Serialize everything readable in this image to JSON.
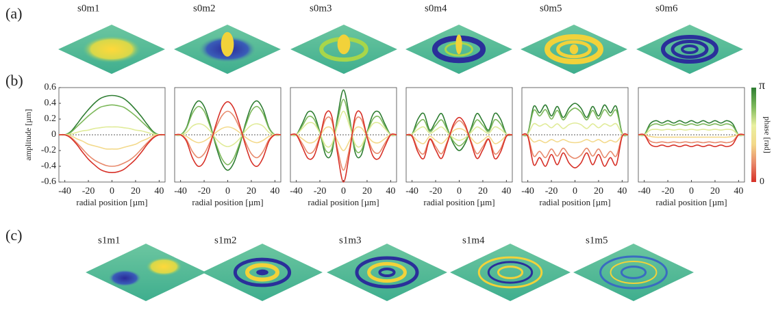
{
  "panel_labels": [
    "(a)",
    "(b)",
    "(c)"
  ],
  "a_titles": [
    "s0m1",
    "s0m2",
    "s0m3",
    "s0m4",
    "s0m5",
    "s0m6"
  ],
  "c_titles": [
    "s1m1",
    "s1m2",
    "s1m3",
    "s1m4",
    "s1m5"
  ],
  "colorbar": {
    "max_label": "π",
    "min_label": "0",
    "label": "phase [rad]",
    "colors": [
      "#2e7d32",
      "#7cb85a",
      "#e9f0a0",
      "#f3d98a",
      "#e8896b",
      "#d73027"
    ]
  },
  "chart_data": [
    {
      "type": "line",
      "ylabel": "amplitude [µm]",
      "xlabel": "radial position [µm]",
      "x": [
        -45,
        -40,
        -35,
        -30,
        -25,
        -20,
        -15,
        -10,
        -5,
        0,
        5,
        10,
        15,
        20,
        25,
        30,
        35,
        40,
        45
      ],
      "xlim": [
        -45,
        45
      ],
      "xticks": [
        -40,
        -20,
        0,
        20,
        40
      ],
      "ylim": [
        -0.6,
        0.6
      ],
      "yticks": [
        -0.6,
        -0.4,
        -0.2,
        0,
        0.2,
        0.4,
        0.6
      ],
      "series": [
        {
          "color": "#2e7d32",
          "values": [
            0,
            0,
            0.04,
            0.13,
            0.23,
            0.32,
            0.4,
            0.46,
            0.49,
            0.5,
            0.49,
            0.46,
            0.4,
            0.32,
            0.23,
            0.13,
            0.04,
            0,
            0
          ]
        },
        {
          "color": "#7cb85a",
          "values": [
            0,
            0,
            0.03,
            0.1,
            0.17,
            0.24,
            0.3,
            0.35,
            0.37,
            0.38,
            0.37,
            0.35,
            0.3,
            0.24,
            0.17,
            0.1,
            0.03,
            0,
            0
          ]
        },
        {
          "color": "#e0eb98",
          "values": [
            0,
            0,
            0.01,
            0.03,
            0.05,
            0.06,
            0.08,
            0.09,
            0.1,
            0.1,
            0.1,
            0.09,
            0.08,
            0.06,
            0.05,
            0.03,
            0.01,
            0,
            0
          ]
        },
        {
          "color": "#f3d98a",
          "values": [
            0,
            0,
            -0.01,
            -0.05,
            -0.08,
            -0.12,
            -0.14,
            -0.16,
            -0.18,
            -0.18,
            -0.18,
            -0.16,
            -0.14,
            -0.12,
            -0.08,
            -0.05,
            -0.01,
            0,
            0
          ]
        },
        {
          "color": "#e8896b",
          "values": [
            0,
            0,
            -0.03,
            -0.1,
            -0.18,
            -0.26,
            -0.32,
            -0.36,
            -0.39,
            -0.4,
            -0.39,
            -0.36,
            -0.32,
            -0.26,
            -0.18,
            -0.1,
            -0.03,
            0,
            0
          ]
        },
        {
          "color": "#d73027",
          "values": [
            0,
            0,
            -0.04,
            -0.12,
            -0.22,
            -0.31,
            -0.38,
            -0.44,
            -0.47,
            -0.48,
            -0.47,
            -0.44,
            -0.38,
            -0.31,
            -0.22,
            -0.12,
            -0.04,
            0,
            0
          ]
        }
      ]
    },
    {
      "type": "line",
      "xlabel": "radial position [µm]",
      "x": [
        -45,
        -40,
        -35,
        -30,
        -25,
        -20,
        -15,
        -10,
        -5,
        0,
        5,
        10,
        15,
        20,
        25,
        30,
        35,
        40,
        45
      ],
      "xlim": [
        -45,
        45
      ],
      "xticks": [
        -40,
        -20,
        0,
        20,
        40
      ],
      "ylim": [
        -0.6,
        0.6
      ],
      "series": [
        {
          "color": "#2e7d32",
          "values": [
            0,
            0,
            0.09,
            0.32,
            0.43,
            0.36,
            0.14,
            -0.14,
            -0.36,
            -0.45,
            -0.36,
            -0.14,
            0.14,
            0.36,
            0.43,
            0.32,
            0.09,
            0,
            0
          ]
        },
        {
          "color": "#7cb85a",
          "values": [
            0,
            0,
            0.08,
            0.27,
            0.36,
            0.3,
            0.11,
            -0.11,
            -0.3,
            -0.38,
            -0.3,
            -0.11,
            0.11,
            0.3,
            0.36,
            0.27,
            0.08,
            0,
            0
          ]
        },
        {
          "color": "#e0eb98",
          "values": [
            0,
            0,
            0.03,
            0.11,
            0.14,
            0.12,
            0.05,
            -0.05,
            -0.12,
            -0.15,
            -0.12,
            -0.05,
            0.05,
            0.12,
            0.14,
            0.11,
            0.03,
            0,
            0
          ]
        },
        {
          "color": "#f3d98a",
          "values": [
            0,
            0,
            -0.02,
            -0.07,
            -0.1,
            -0.08,
            -0.03,
            0.03,
            0.08,
            0.1,
            0.08,
            0.03,
            -0.03,
            -0.08,
            -0.1,
            -0.07,
            -0.02,
            0,
            0
          ]
        },
        {
          "color": "#e8896b",
          "values": [
            0,
            0,
            -0.06,
            -0.21,
            -0.29,
            -0.24,
            -0.09,
            0.09,
            0.24,
            0.3,
            0.24,
            0.09,
            -0.09,
            -0.24,
            -0.29,
            -0.21,
            -0.06,
            0,
            0
          ]
        },
        {
          "color": "#d73027",
          "values": [
            0,
            0,
            -0.08,
            -0.29,
            -0.4,
            -0.34,
            -0.13,
            0.13,
            0.34,
            0.42,
            0.34,
            0.13,
            -0.13,
            -0.34,
            -0.4,
            -0.29,
            -0.08,
            0,
            0
          ]
        }
      ]
    },
    {
      "type": "line",
      "xlabel": "radial position [µm]",
      "x": [
        -45,
        -40,
        -35,
        -30,
        -25,
        -20,
        -15,
        -10,
        -5,
        0,
        5,
        10,
        15,
        20,
        25,
        30,
        35,
        40,
        45
      ],
      "xlim": [
        -45,
        45
      ],
      "xticks": [
        -40,
        -20,
        0,
        20,
        40
      ],
      "ylim": [
        -0.6,
        0.6
      ],
      "series": [
        {
          "color": "#2e7d32",
          "values": [
            0,
            0,
            0.14,
            0.29,
            0.26,
            0.03,
            -0.26,
            -0.23,
            0.23,
            0.57,
            0.23,
            -0.23,
            -0.26,
            0.03,
            0.26,
            0.29,
            0.14,
            0,
            0
          ]
        },
        {
          "color": "#7cb85a",
          "values": [
            0,
            0,
            0.11,
            0.23,
            0.2,
            0.02,
            -0.2,
            -0.18,
            0.18,
            0.45,
            0.18,
            -0.18,
            -0.2,
            0.02,
            0.2,
            0.23,
            0.11,
            0,
            0
          ]
        },
        {
          "color": "#e0eb98",
          "values": [
            0,
            0,
            0.08,
            0.15,
            0.14,
            0.02,
            -0.14,
            -0.12,
            0.12,
            0.3,
            0.12,
            -0.12,
            -0.14,
            0.02,
            0.14,
            0.15,
            0.08,
            0,
            0
          ]
        },
        {
          "color": "#f3d98a",
          "values": [
            0,
            0,
            -0.05,
            -0.1,
            -0.09,
            -0.01,
            0.09,
            0.08,
            -0.08,
            -0.2,
            -0.08,
            0.08,
            0.09,
            -0.01,
            -0.09,
            -0.1,
            -0.05,
            0,
            0
          ]
        },
        {
          "color": "#e8896b",
          "values": [
            0,
            0,
            -0.11,
            -0.23,
            -0.2,
            -0.02,
            0.2,
            0.18,
            -0.18,
            -0.45,
            -0.18,
            0.18,
            0.2,
            -0.02,
            -0.2,
            -0.23,
            -0.11,
            0,
            0
          ]
        },
        {
          "color": "#d73027",
          "values": [
            0,
            0,
            -0.15,
            -0.3,
            -0.27,
            -0.03,
            0.27,
            0.24,
            -0.24,
            -0.6,
            -0.24,
            0.24,
            0.27,
            -0.03,
            -0.27,
            -0.3,
            -0.15,
            0,
            0
          ]
        }
      ]
    },
    {
      "type": "line",
      "xlabel": "radial position [µm]",
      "x": [
        -45,
        -40,
        -35,
        -30,
        -25,
        -20,
        -15,
        -10,
        -5,
        0,
        5,
        10,
        15,
        20,
        25,
        30,
        35,
        40,
        45
      ],
      "xlim": [
        -45,
        45
      ],
      "xticks": [
        -40,
        -20,
        0,
        20,
        40
      ],
      "ylim": [
        -0.6,
        0.6
      ],
      "series": [
        {
          "color": "#2e7d32",
          "values": [
            0,
            0.01,
            0.2,
            0.27,
            0.06,
            0.17,
            0.27,
            0.08,
            -0.11,
            -0.2,
            -0.11,
            0.08,
            0.27,
            0.17,
            0.06,
            0.27,
            0.2,
            0.01,
            0
          ]
        },
        {
          "color": "#7cb85a",
          "values": [
            0,
            0.01,
            0.14,
            0.19,
            0.04,
            0.12,
            0.19,
            0.06,
            -0.08,
            -0.14,
            -0.08,
            0.06,
            0.19,
            0.12,
            0.04,
            0.19,
            0.14,
            0.01,
            0
          ]
        },
        {
          "color": "#e0eb98",
          "values": [
            0,
            0.01,
            0.07,
            0.1,
            0.02,
            0.06,
            0.1,
            0.03,
            -0.04,
            -0.07,
            -0.04,
            0.03,
            0.1,
            0.06,
            0.02,
            0.1,
            0.07,
            0.01,
            0
          ]
        },
        {
          "color": "#f3d98a",
          "values": [
            0,
            -0.01,
            -0.08,
            -0.11,
            -0.02,
            -0.07,
            -0.11,
            -0.04,
            0.05,
            0.08,
            0.05,
            -0.04,
            -0.11,
            -0.07,
            -0.02,
            -0.11,
            -0.08,
            -0.01,
            0
          ]
        },
        {
          "color": "#e8896b",
          "values": [
            0,
            -0.01,
            -0.18,
            -0.24,
            -0.05,
            -0.15,
            -0.24,
            -0.08,
            0.1,
            0.18,
            0.1,
            -0.08,
            -0.24,
            -0.15,
            -0.05,
            -0.24,
            -0.18,
            -0.01,
            0
          ]
        },
        {
          "color": "#d73027",
          "values": [
            0,
            -0.02,
            -0.22,
            -0.3,
            -0.06,
            -0.19,
            -0.3,
            -0.1,
            0.13,
            0.22,
            0.13,
            -0.1,
            -0.3,
            -0.19,
            -0.06,
            -0.3,
            -0.22,
            -0.02,
            0
          ]
        }
      ]
    },
    {
      "type": "line",
      "xlabel": "radial position [µm]",
      "x": [
        -45,
        -40,
        -35,
        -30,
        -25,
        -20,
        -15,
        -10,
        -5,
        0,
        5,
        10,
        15,
        20,
        25,
        30,
        35,
        40,
        45
      ],
      "xlim": [
        -45,
        45
      ],
      "xticks": [
        -40,
        -20,
        0,
        20,
        40
      ],
      "ylim": [
        -0.6,
        0.6
      ],
      "series": [
        {
          "color": "#2e7d32",
          "values": [
            0,
            0.02,
            0.36,
            0.28,
            0.38,
            0.24,
            0.36,
            0.22,
            0.34,
            0.4,
            0.34,
            0.22,
            0.36,
            0.24,
            0.38,
            0.28,
            0.36,
            0.02,
            0
          ]
        },
        {
          "color": "#7cb85a",
          "values": [
            0,
            0.02,
            0.31,
            0.24,
            0.32,
            0.2,
            0.31,
            0.19,
            0.29,
            0.34,
            0.29,
            0.19,
            0.31,
            0.2,
            0.32,
            0.24,
            0.31,
            0.02,
            0
          ]
        },
        {
          "color": "#e0eb98",
          "values": [
            0,
            0.01,
            0.14,
            0.11,
            0.14,
            0.09,
            0.14,
            0.08,
            0.13,
            0.15,
            0.13,
            0.08,
            0.14,
            0.09,
            0.14,
            0.11,
            0.14,
            0.01,
            0
          ]
        },
        {
          "color": "#f3d98a",
          "values": [
            0,
            -0.01,
            -0.09,
            -0.07,
            -0.1,
            -0.06,
            -0.09,
            -0.06,
            -0.09,
            -0.1,
            -0.09,
            -0.06,
            -0.09,
            -0.06,
            -0.1,
            -0.07,
            -0.09,
            -0.01,
            0
          ]
        },
        {
          "color": "#e8896b",
          "values": [
            0,
            -0.02,
            -0.27,
            -0.21,
            -0.29,
            -0.18,
            -0.27,
            -0.17,
            -0.26,
            -0.3,
            -0.26,
            -0.17,
            -0.27,
            -0.18,
            -0.29,
            -0.21,
            -0.27,
            -0.02,
            0
          ]
        },
        {
          "color": "#d73027",
          "values": [
            0,
            -0.02,
            -0.38,
            -0.29,
            -0.4,
            -0.25,
            -0.38,
            -0.23,
            -0.36,
            -0.42,
            -0.36,
            -0.23,
            -0.38,
            -0.25,
            -0.4,
            -0.29,
            -0.38,
            -0.02,
            0
          ]
        }
      ]
    },
    {
      "type": "line",
      "xlabel": "radial position [µm]",
      "x": [
        -45,
        -40,
        -35,
        -30,
        -25,
        -20,
        -15,
        -10,
        -5,
        0,
        5,
        10,
        15,
        20,
        25,
        30,
        35,
        40,
        45
      ],
      "xlim": [
        -45,
        45
      ],
      "xticks": [
        -40,
        -20,
        0,
        20,
        40
      ],
      "ylim": [
        -0.6,
        0.6
      ],
      "series": [
        {
          "color": "#2e7d32",
          "values": [
            0,
            0,
            0.14,
            0.18,
            0.15,
            0.18,
            0.15,
            0.18,
            0.15,
            0.18,
            0.15,
            0.18,
            0.15,
            0.18,
            0.15,
            0.18,
            0.14,
            0,
            0
          ]
        },
        {
          "color": "#7cb85a",
          "values": [
            0,
            0,
            0.11,
            0.14,
            0.12,
            0.14,
            0.12,
            0.14,
            0.12,
            0.14,
            0.12,
            0.14,
            0.12,
            0.14,
            0.12,
            0.14,
            0.11,
            0,
            0
          ]
        },
        {
          "color": "#e0eb98",
          "values": [
            0,
            0,
            0.06,
            0.07,
            0.06,
            0.07,
            0.06,
            0.07,
            0.06,
            0.07,
            0.06,
            0.07,
            0.06,
            0.07,
            0.06,
            0.07,
            0.06,
            0,
            0
          ]
        },
        {
          "color": "#f3d98a",
          "values": [
            0,
            0,
            -0.02,
            -0.03,
            -0.03,
            -0.03,
            -0.03,
            -0.03,
            -0.03,
            -0.03,
            -0.03,
            -0.03,
            -0.03,
            -0.03,
            -0.03,
            -0.03,
            -0.02,
            0,
            0
          ]
        },
        {
          "color": "#e8896b",
          "values": [
            0,
            0,
            -0.08,
            -0.1,
            -0.09,
            -0.1,
            -0.09,
            -0.1,
            -0.09,
            -0.1,
            -0.09,
            -0.1,
            -0.09,
            -0.1,
            -0.09,
            -0.1,
            -0.08,
            0,
            0
          ]
        },
        {
          "color": "#d73027",
          "values": [
            0,
            0,
            -0.12,
            -0.15,
            -0.13,
            -0.15,
            -0.13,
            -0.15,
            -0.13,
            -0.15,
            -0.13,
            -0.15,
            -0.13,
            -0.15,
            -0.13,
            -0.15,
            -0.12,
            0,
            0
          ]
        }
      ]
    }
  ]
}
